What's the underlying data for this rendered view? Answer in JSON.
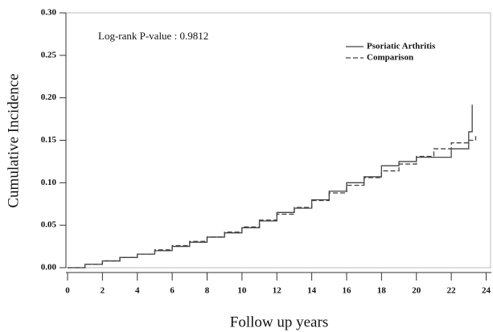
{
  "chart_data": {
    "type": "line",
    "step": true,
    "annotation": "Log-rank P-value : 0.9812",
    "x_label": "Follow up years",
    "y_label": "Cumulative Incidence",
    "x": [
      0,
      1,
      2,
      3,
      4,
      5,
      6,
      7,
      8,
      9,
      10,
      11,
      12,
      13,
      14,
      15,
      16,
      17,
      18,
      19,
      20,
      21,
      22,
      23,
      23.2,
      23.4
    ],
    "series": [
      {
        "name": "Psoriatic Arthritis",
        "color": "#444444",
        "dash": false,
        "values": [
          0,
          0.004,
          0.008,
          0.012,
          0.016,
          0.02,
          0.025,
          0.03,
          0.036,
          0.041,
          0.047,
          0.055,
          0.065,
          0.07,
          0.08,
          0.09,
          0.1,
          0.107,
          0.12,
          0.125,
          0.13,
          0.13,
          0.14,
          0.16,
          0.192,
          null
        ]
      },
      {
        "name": "Comparison",
        "color": "#444444",
        "dash": true,
        "values": [
          0,
          0.004,
          0.008,
          0.012,
          0.016,
          0.021,
          0.026,
          0.031,
          0.036,
          0.042,
          0.048,
          0.056,
          0.063,
          0.071,
          0.079,
          0.088,
          0.097,
          0.106,
          0.114,
          0.122,
          0.131,
          0.14,
          0.147,
          0.15,
          0.15,
          0.155
        ]
      }
    ],
    "xlim": [
      0,
      24.3
    ],
    "ylim": [
      0,
      0.3
    ],
    "xticks": [
      0,
      2,
      4,
      6,
      8,
      10,
      12,
      14,
      16,
      18,
      20,
      22,
      24
    ],
    "yticks": [
      {
        "value": 0,
        "label": "0.00"
      },
      {
        "value": 0.05,
        "label": "0.05"
      },
      {
        "value": 0.1,
        "label": "0.10"
      },
      {
        "value": 0.15,
        "label": "0.15"
      },
      {
        "value": 0.2,
        "label": "0.20"
      },
      {
        "value": 0.25,
        "label": "0.25"
      },
      {
        "value": 0.3,
        "label": "0.30"
      }
    ],
    "legend": "upper right",
    "grid": false
  }
}
